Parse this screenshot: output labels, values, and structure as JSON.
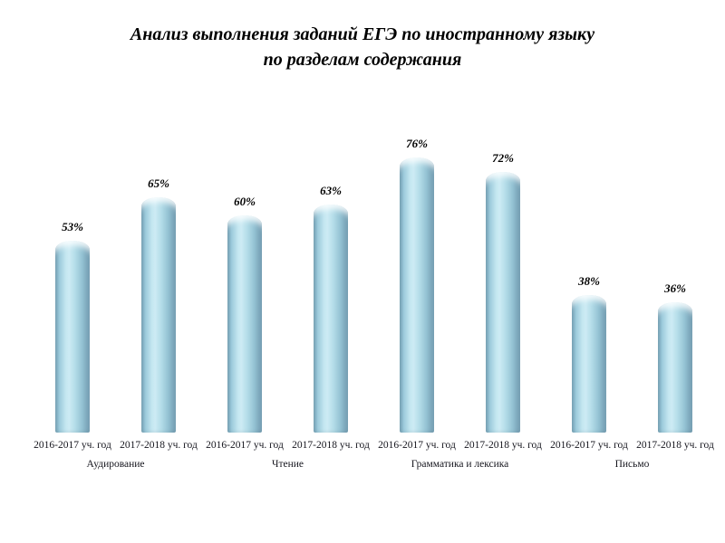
{
  "title": {
    "line1": "Анализ выполнения заданий ЕГЭ по иностранному языку",
    "line2": "по разделам содержания"
  },
  "chart_data": {
    "type": "bar",
    "title": "Анализ выполнения заданий ЕГЭ по иностранному языку по разделам содержания",
    "ylabel": "",
    "xlabel": "",
    "ylim": [
      0,
      100
    ],
    "grid": false,
    "legend": null,
    "bar_style": "3d-cylinder",
    "bar_color": "#a9d3e2",
    "bar_edge_color": "#6d9bb0",
    "value_suffix": "%",
    "categories": [
      "Аудирование",
      "Чтение",
      "Грамматика и лексика",
      "Письмо"
    ],
    "series_x_labels": [
      "2016-2017 уч. год",
      "2017-2018 уч. год"
    ],
    "groups": [
      {
        "category": "Аудирование",
        "bars": [
          {
            "year": "2016-2017 уч. год",
            "value": 53,
            "label": "53%"
          },
          {
            "year": "2017-2018 уч. год",
            "value": 65,
            "label": "65%"
          }
        ]
      },
      {
        "category": "Чтение",
        "bars": [
          {
            "year": "2016-2017 уч. год",
            "value": 60,
            "label": "60%"
          },
          {
            "year": "2017-2018 уч. год",
            "value": 63,
            "label": "63%"
          }
        ]
      },
      {
        "category": "Грамматика и лексика",
        "bars": [
          {
            "year": "2016-2017 уч. год",
            "value": 76,
            "label": "76%"
          },
          {
            "year": "2017-2018 уч. год",
            "value": 72,
            "label": "72%"
          }
        ]
      },
      {
        "category": "Письмо",
        "bars": [
          {
            "year": "2016-2017 уч. год",
            "value": 38,
            "label": "38%"
          },
          {
            "year": "2017-2018 уч. год",
            "value": 36,
            "label": "36%"
          }
        ]
      }
    ]
  }
}
